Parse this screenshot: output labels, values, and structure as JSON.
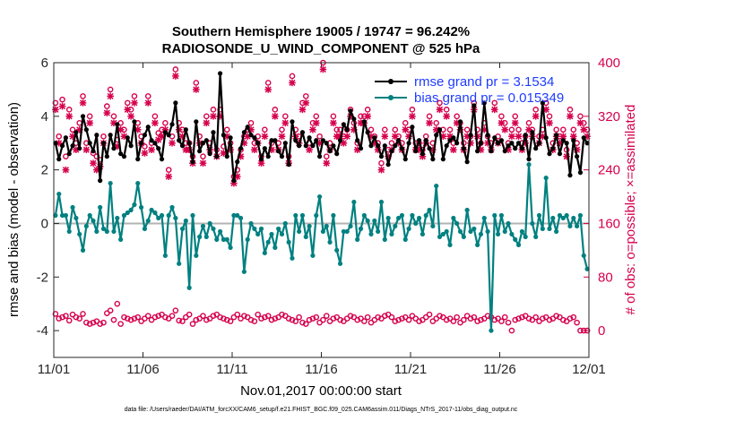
{
  "chart_data": {
    "type": "line",
    "title_lines": [
      "Southern Hemisphere 19005 / 19747 = 96.242%",
      "RADIOSONDE_U_WIND_COMPONENT @ 525 hPa"
    ],
    "xlabel": "Nov.01,2017 00:00:00 start",
    "ylabel_left": "rmse and bias (model - observation)",
    "ylabel_right": "# of obs: o=possible; ×=assimilated",
    "xlim": [
      0,
      30
    ],
    "ylim_left": [
      -5,
      6
    ],
    "ylim_right": [
      -40,
      400
    ],
    "x_tick_values": [
      0,
      5,
      10,
      15,
      20,
      25,
      30
    ],
    "x_tick_labels": [
      "11/01",
      "11/06",
      "11/11",
      "11/16",
      "11/21",
      "11/26",
      "12/01"
    ],
    "y_left_ticks": [
      -4,
      -2,
      0,
      2,
      4,
      6
    ],
    "y_left_tick_labels": [
      "-4",
      "-2",
      "0",
      "2",
      "4",
      "6"
    ],
    "y_right_ticks": [
      0,
      80,
      160,
      240,
      320,
      400
    ],
    "y_right_tick_labels": [
      "0",
      "80",
      "160",
      "240",
      "320",
      "400"
    ],
    "colors": {
      "rmse": "#000000",
      "bias": "#008080",
      "obs": "#d6004c",
      "zero_line": "#b3b3b3",
      "legend_text": "#1f3cff",
      "right_axis": "#d6004c"
    },
    "series": [
      {
        "name": "rmse",
        "axis": "left",
        "legend": "rmse grand pr = 3.1534",
        "values": [
          3.0,
          2.4,
          2.9,
          3.2,
          2.6,
          2.9,
          3.4,
          2.8,
          4.0,
          3.5,
          3.0,
          2.7,
          3.3,
          1.6,
          3.0,
          2.5,
          3.3,
          2.8,
          3.7,
          2.6,
          2.5,
          3.2,
          2.9,
          3.8,
          2.4,
          3.0,
          3.3,
          3.6,
          3.1,
          3.0,
          2.8,
          2.4,
          3.4,
          3.3,
          3.7,
          4.5,
          3.1,
          2.9,
          3.5,
          3.0,
          2.3,
          3.8,
          2.7,
          3.0,
          3.1,
          2.6,
          3.4,
          2.5,
          5.6,
          3.3,
          2.5,
          3.2,
          1.6,
          2.3,
          2.8,
          3.4,
          3.6,
          3.3,
          3.2,
          3.0,
          2.4,
          2.8,
          2.5,
          3.1,
          3.1,
          2.7,
          2.5,
          3.0,
          2.2,
          3.8,
          3.1,
          2.9,
          3.4,
          2.9,
          3.2,
          2.9,
          3.1,
          2.5,
          3.1,
          3.0,
          2.7,
          2.9,
          2.6,
          3.1,
          3.7,
          3.5,
          4.2,
          3.9,
          3.1,
          2.8,
          3.8,
          3.4,
          2.9,
          3.2,
          2.9,
          2.5,
          2.9,
          2.2,
          2.7,
          2.9,
          3.1,
          2.8,
          2.4,
          3.0,
          3.6,
          2.7,
          3.1,
          2.6,
          3.1,
          2.8,
          2.4,
          3.3,
          3.5,
          2.4,
          2.9,
          3.1,
          3.2,
          3.0,
          3.8,
          2.8,
          2.3,
          3.3,
          4.4,
          2.7,
          3.0,
          4.5,
          3.3,
          2.7,
          3.2,
          3.0,
          3.1,
          2.7,
          2.9,
          3.0,
          2.8,
          3.0,
          2.8,
          3.3,
          2.4,
          3.4,
          2.8,
          3.0,
          4.5,
          3.2,
          2.6,
          2.8,
          3.3,
          2.6,
          3.1,
          3.0,
          1.8,
          3.1,
          2.5,
          1.9,
          3.2,
          3.0
        ]
      },
      {
        "name": "bias",
        "axis": "left",
        "legend": "bias grand pr = 0.015349",
        "values": [
          0.3,
          1.1,
          0.3,
          0.3,
          -0.3,
          0.6,
          0.2,
          -0.4,
          -1.0,
          -0.1,
          0.3,
          0.1,
          -0.3,
          0.6,
          -0.2,
          -0.3,
          1.5,
          -0.3,
          0.2,
          -0.6,
          0.3,
          0.4,
          0.5,
          0.7,
          1.5,
          0.6,
          -0.2,
          0.1,
          0.5,
          0.4,
          0.2,
          0.3,
          -1.2,
          0.3,
          0.6,
          0.2,
          -1.5,
          -0.2,
          0.1,
          -2.4,
          0.3,
          -1.2,
          -0.5,
          -0.1,
          -0.5,
          0.0,
          -0.2,
          -0.6,
          -0.3,
          -0.6,
          -0.6,
          -0.9,
          0.3,
          0.3,
          0.2,
          -1.8,
          -0.6,
          0.0,
          -0.2,
          -0.4,
          -0.2,
          -1.1,
          -0.7,
          -0.4,
          -0.9,
          -0.2,
          -0.4,
          0.0,
          -0.7,
          -1.3,
          0.3,
          -0.3,
          0.3,
          -0.5,
          -0.1,
          -1.2,
          0.3,
          1.0,
          -0.3,
          -0.1,
          -0.7,
          0.3,
          -1.0,
          -1.5,
          -0.3,
          -0.3,
          -0.1,
          0.8,
          -0.6,
          -0.2,
          0.3,
          0.1,
          -0.4,
          0.1,
          -0.3,
          0.8,
          -0.6,
          0.2,
          -0.4,
          -0.1,
          0.2,
          0.3,
          -0.6,
          -0.2,
          0.3,
          0.0,
          0.2,
          -0.4,
          0.3,
          0.5,
          -0.1,
          1.4,
          -0.5,
          -0.4,
          -0.3,
          -0.8,
          0.2,
          0.0,
          -0.3,
          -0.5,
          0.5,
          -0.3,
          -0.2,
          -0.8,
          -0.4,
          0.2,
          -0.3,
          -4.0,
          0.3,
          -0.4,
          0.3,
          -0.3,
          0.0,
          -0.4,
          -0.6,
          -0.8,
          -0.3,
          -0.5,
          2.2,
          0.0,
          -0.5,
          0.3,
          -0.2,
          1.7,
          -0.2,
          0.2,
          -0.3,
          0.3,
          0.2,
          0.3,
          -0.1,
          0.2,
          -0.1,
          0.3,
          -1.2,
          -1.7
        ]
      },
      {
        "name": "possible obs",
        "axis": "right",
        "marker": "o",
        "values": [
          340,
          290,
          345,
          260,
          330,
          300,
          280,
          310,
          350,
          280,
          320,
          265,
          260,
          255,
          290,
          335,
          360,
          320,
          285,
          310,
          300,
          340,
          330,
          350,
          310,
          290,
          275,
          350,
          280,
          320,
          295,
          300,
          310,
          240,
          290,
          390,
          310,
          300,
          280,
          280,
          260,
          370,
          290,
          260,
          320,
          280,
          330,
          270,
          330,
          275,
          300,
          280,
          230,
          240,
          270,
          290,
          300,
          310,
          280,
          290,
          260,
          300,
          370,
          280,
          330,
          280,
          300,
          320,
          260,
          380,
          300,
          290,
          340,
          350,
          280,
          310,
          320,
          290,
          400,
          260,
          280,
          320,
          300,
          300,
          290,
          300,
          330,
          310,
          280,
          320,
          320,
          330,
          300,
          290,
          280,
          250,
          300,
          270,
          280,
          300,
          290,
          280,
          310,
          300,
          330,
          280,
          280,
          270,
          290,
          320,
          280,
          310,
          340,
          300,
          330,
          300,
          280,
          320,
          310,
          280,
          300,
          290,
          340,
          300,
          280,
          310,
          290,
          280,
          340,
          290,
          320,
          310,
          280,
          300,
          320,
          300,
          280,
          290,
          310,
          300,
          330,
          290,
          300,
          340,
          320,
          280,
          300,
          290,
          300,
          270,
          330,
          300,
          280,
          320,
          310,
          300
        ]
      },
      {
        "name": "assimilated obs",
        "axis": "right",
        "marker": "x",
        "values": [
          330,
          280,
          335,
          240,
          320,
          290,
          270,
          300,
          340,
          270,
          310,
          250,
          240,
          245,
          280,
          325,
          350,
          310,
          275,
          300,
          290,
          330,
          320,
          340,
          300,
          280,
          265,
          340,
          270,
          310,
          285,
          290,
          300,
          230,
          280,
          380,
          300,
          290,
          270,
          270,
          250,
          360,
          280,
          250,
          310,
          270,
          320,
          260,
          320,
          265,
          290,
          270,
          220,
          230,
          260,
          280,
          290,
          300,
          270,
          280,
          250,
          290,
          360,
          270,
          320,
          270,
          290,
          310,
          250,
          370,
          290,
          280,
          330,
          340,
          270,
          300,
          310,
          280,
          390,
          250,
          270,
          310,
          290,
          290,
          280,
          290,
          320,
          300,
          270,
          310,
          310,
          320,
          290,
          280,
          270,
          240,
          290,
          260,
          270,
          290,
          280,
          270,
          300,
          290,
          320,
          270,
          270,
          260,
          280,
          310,
          270,
          300,
          330,
          290,
          320,
          290,
          270,
          310,
          300,
          270,
          290,
          280,
          330,
          290,
          270,
          300,
          280,
          270,
          330,
          280,
          310,
          300,
          270,
          290,
          310,
          290,
          270,
          280,
          300,
          290,
          320,
          280,
          290,
          330,
          310,
          270,
          290,
          280,
          290,
          260,
          320,
          290,
          270,
          310,
          300,
          290
        ]
      },
      {
        "name": "low possible obs",
        "axis": "right",
        "marker": "o",
        "values": [
          25,
          18,
          20,
          22,
          15,
          24,
          20,
          18,
          25,
          12,
          10,
          12,
          14,
          10,
          12,
          26,
          30,
          16,
          40,
          10,
          20,
          18,
          16,
          18,
          20,
          14,
          18,
          22,
          16,
          20,
          22,
          24,
          20,
          18,
          22,
          30,
          15,
          14,
          20,
          24,
          10,
          16,
          18,
          22,
          16,
          18,
          22,
          24,
          20,
          18,
          16,
          14,
          20,
          24,
          18,
          22,
          20,
          16,
          14,
          24,
          18,
          20,
          22,
          16,
          18,
          20,
          24,
          22,
          18,
          16,
          14,
          20,
          12,
          10,
          16,
          18,
          20,
          12,
          16,
          22,
          14,
          18,
          20,
          16,
          14,
          18,
          22,
          20,
          16,
          18,
          14,
          20,
          12,
          16,
          20,
          18,
          22,
          24,
          20,
          14,
          16,
          18,
          20,
          16,
          22,
          18,
          14,
          16,
          20,
          24,
          14,
          18,
          22,
          20,
          16,
          18,
          14,
          20,
          12,
          16,
          22,
          18,
          20,
          14,
          16,
          18,
          22,
          20,
          16,
          18,
          14,
          20,
          12,
          0,
          16,
          18,
          20,
          22,
          18,
          16,
          20,
          14,
          18,
          20,
          16,
          18,
          22,
          20,
          16,
          14,
          18,
          20,
          12,
          0,
          0,
          0
        ]
      }
    ]
  },
  "footnote": "data file: /Users/raeder/DAI/ATM_forcXX/CAM6_setup/f.e21.FHIST_BGC.f09_025.CAM6assim.011/Diags_NTrS_2017-11/obs_diag_output.nc"
}
